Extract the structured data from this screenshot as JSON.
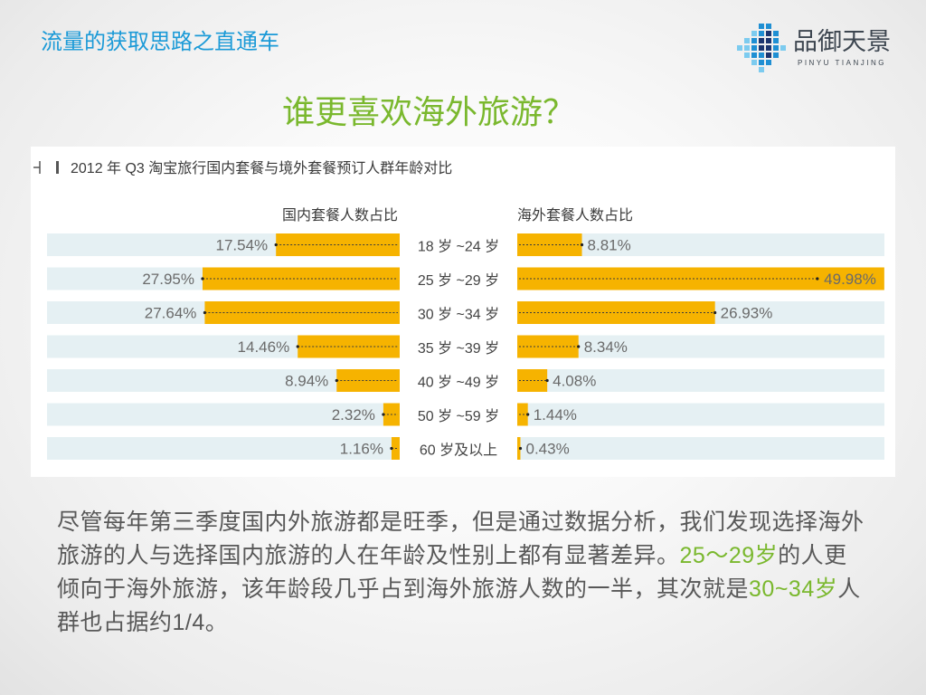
{
  "header": {
    "section_title": "流量的获取思路之直通车"
  },
  "logo": {
    "name": "品御天景",
    "pinyin": "PINYU TIANJING",
    "icon": "pixel-grid-logo-icon"
  },
  "slide": {
    "title": "谁更喜欢海外旅游？"
  },
  "chart_data": {
    "type": "bar",
    "orientation": "horizontal",
    "title": "2012 年 Q3 淘宝旅行国内套餐与境外套餐预订人群年龄对比",
    "title_icon": "bracket-bar-icon",
    "categories": [
      "18 岁 ~24 岁",
      "25 岁 ~29 岁",
      "30 岁 ~34 岁",
      "35 岁 ~39 岁",
      "40 岁 ~49 岁",
      "50 岁 ~59 岁",
      "60 岁及以上"
    ],
    "series": [
      {
        "name": "国内套餐人数占比",
        "values": [
          17.54,
          27.95,
          27.64,
          14.46,
          8.94,
          2.32,
          1.16
        ],
        "value_labels": [
          "17.54%",
          "27.95%",
          "27.64%",
          "14.46%",
          "8.94%",
          "2.32%",
          "1.16%"
        ],
        "color": "#f6b300"
      },
      {
        "name": "海外套餐人数占比",
        "values": [
          8.81,
          49.98,
          26.93,
          8.34,
          4.08,
          1.44,
          0.43
        ],
        "value_labels": [
          "8.81%",
          "49.98%",
          "26.93%",
          "8.34%",
          "4.08%",
          "1.44%",
          "0.43%"
        ],
        "color": "#f6b300"
      }
    ],
    "xlim": [
      0,
      50
    ],
    "band_color": "#e5f0f3",
    "grid": false,
    "legend": "top"
  },
  "description": {
    "lines": [
      {
        "text": "尽管每年第三季度国内外旅游都是旺季，但是通过数据分析，我们发现选择海外"
      },
      {
        "text": "旅游的人与选择国内旅游的人在年龄及性别上都有显著差异。",
        "highlight": "25～29岁",
        "after": "的人更"
      },
      {
        "text": "倾向于海外旅游，该年龄段几乎占到海外旅游人数的一半，其次就是",
        "highlight": "30~34岁",
        "after": "人"
      },
      {
        "text": "群也占据约1/4。"
      }
    ]
  },
  "colors": {
    "section_title": "#1b9ad7",
    "title": "#7ab82e",
    "body_text": "#585858",
    "highlight": "#7ab82e",
    "logo_text": "#3d4650",
    "logo_light": "#7ccbef",
    "logo_blue": "#1f8fd3",
    "logo_navy": "#1c356f"
  }
}
